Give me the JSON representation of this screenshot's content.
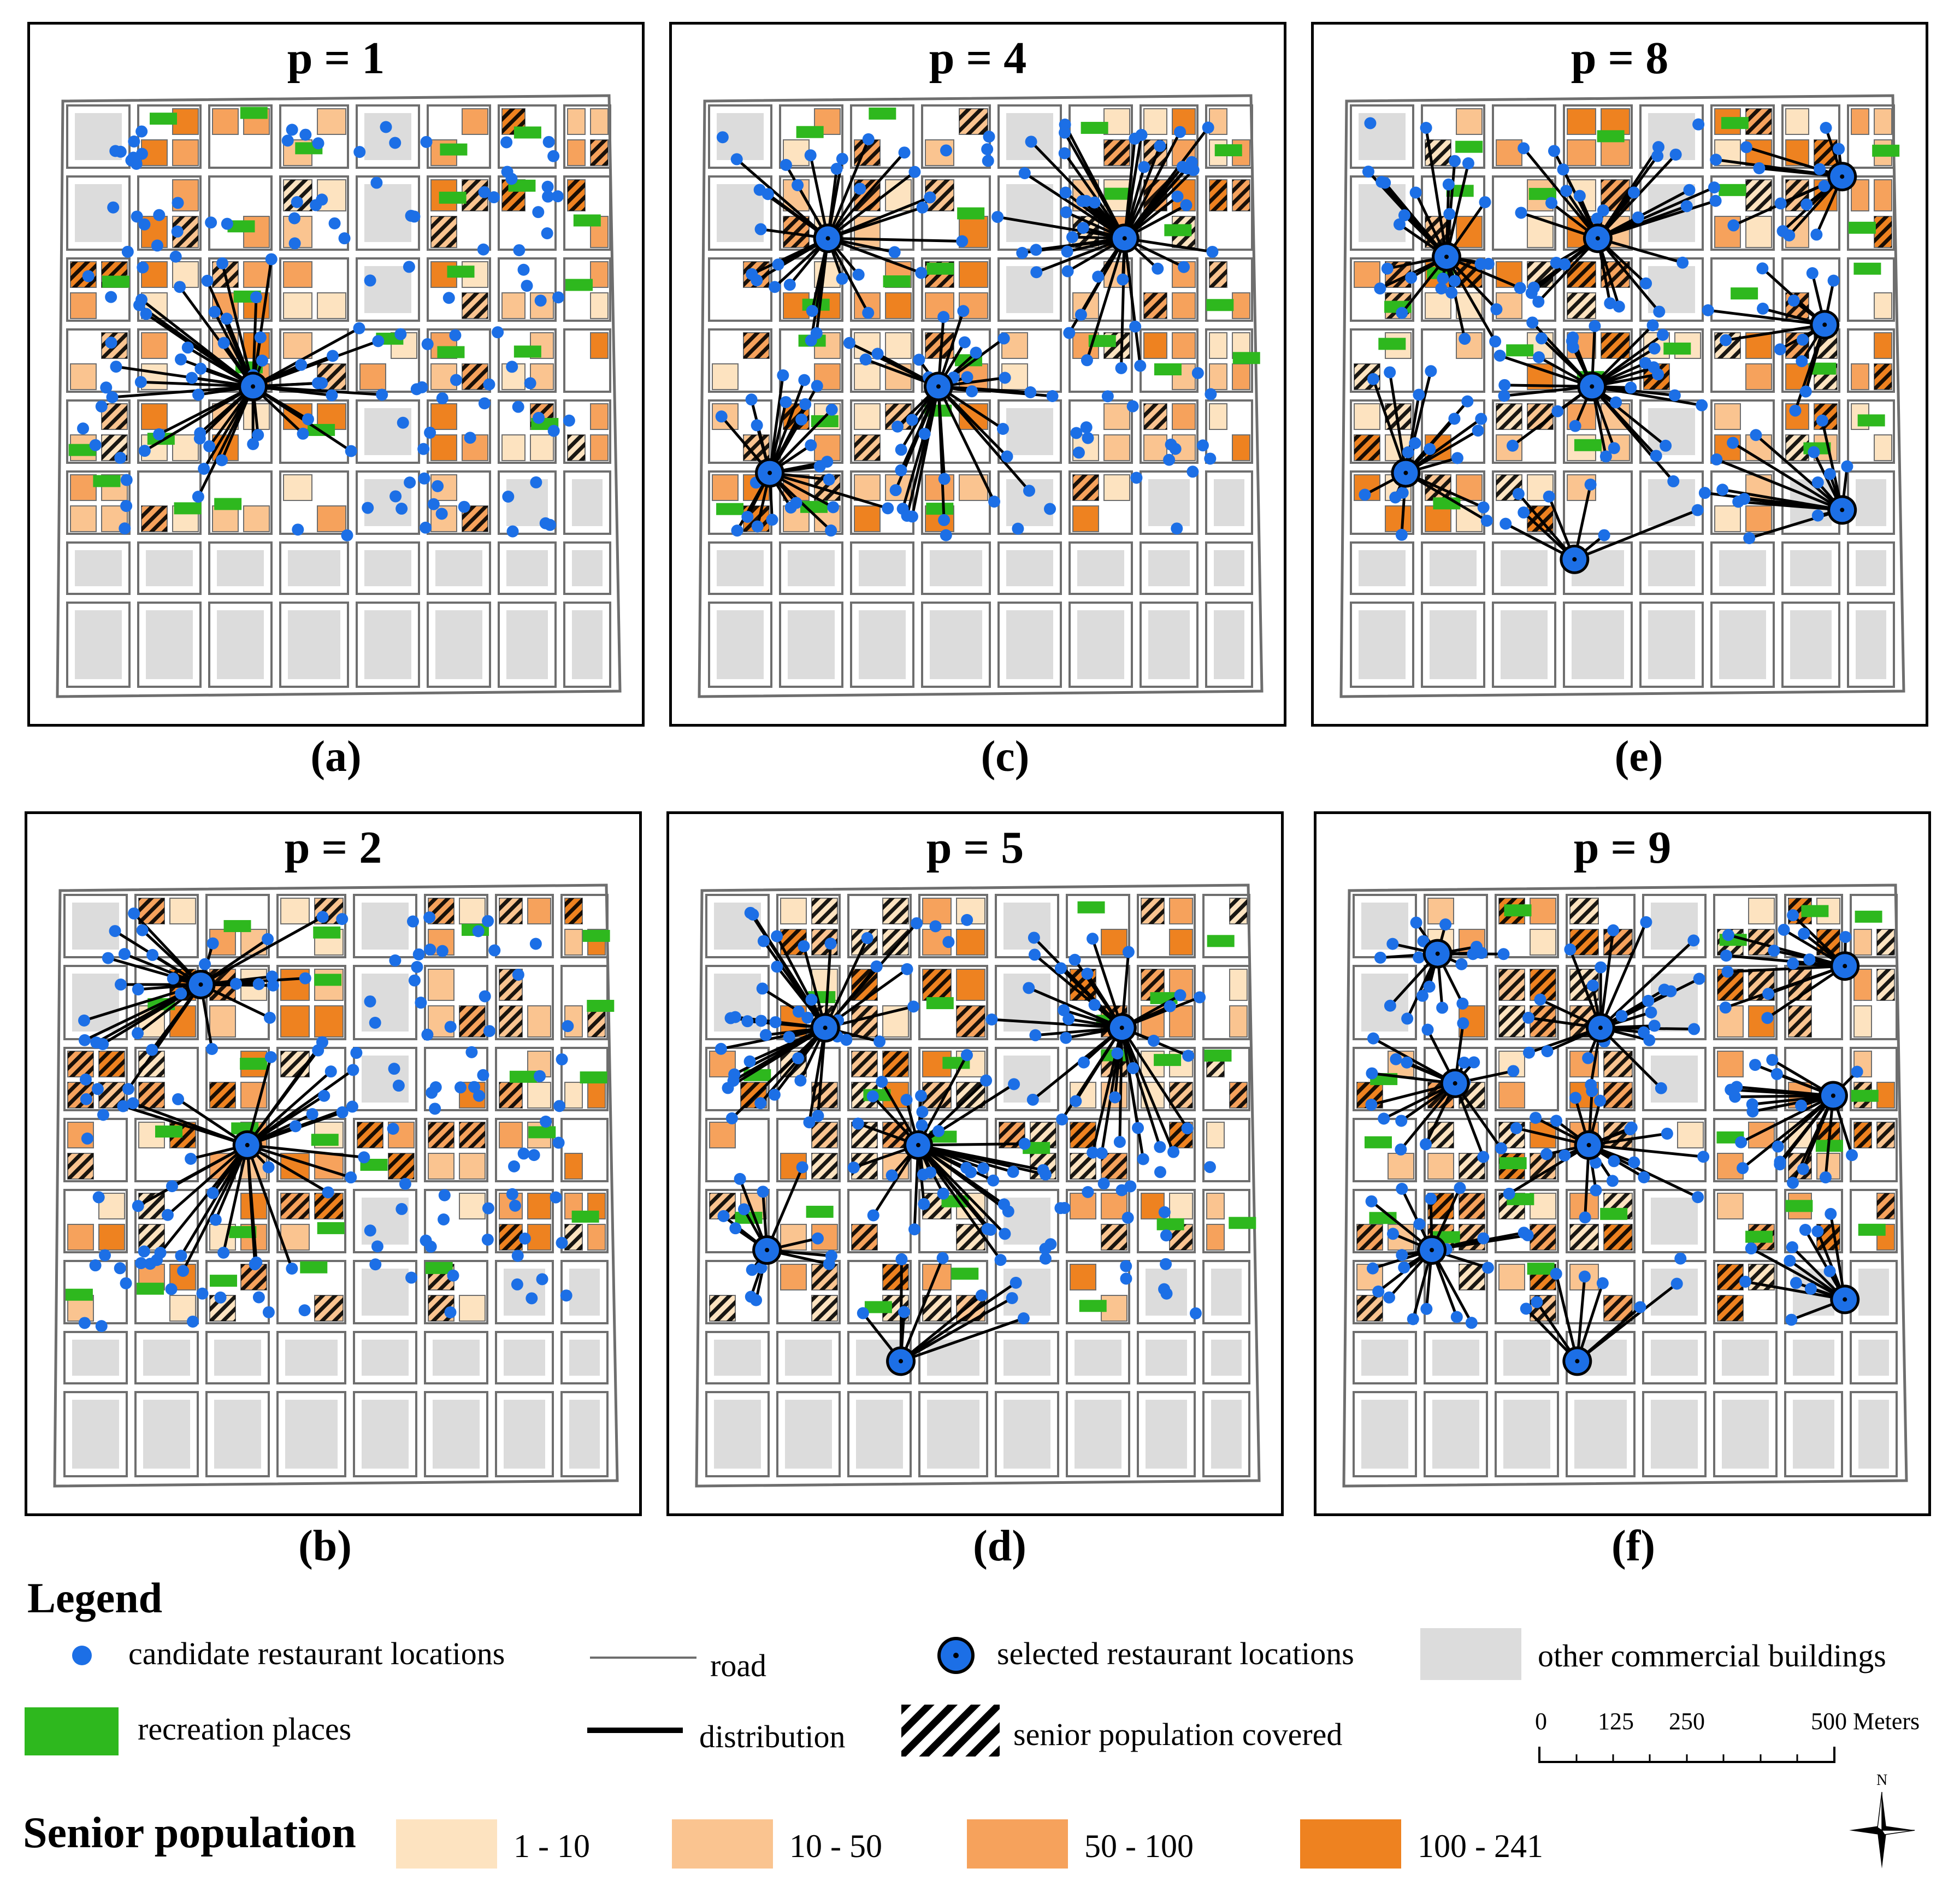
{
  "panels": [
    {
      "id": "a",
      "title": "p = 1",
      "caption": "(a)",
      "selected": [
        [
          0.355,
          0.48
        ]
      ]
    },
    {
      "id": "c",
      "title": "p = 4",
      "caption": "(c)",
      "selected": [
        [
          0.24,
          0.24
        ],
        [
          0.75,
          0.24
        ],
        [
          0.43,
          0.48
        ],
        [
          0.14,
          0.62
        ]
      ]
    },
    {
      "id": "e",
      "title": "p = 8",
      "caption": "(e)",
      "selected": [
        [
          0.2,
          0.27
        ],
        [
          0.46,
          0.24
        ],
        [
          0.88,
          0.14
        ],
        [
          0.85,
          0.38
        ],
        [
          0.45,
          0.48
        ],
        [
          0.13,
          0.62
        ],
        [
          0.42,
          0.76
        ],
        [
          0.88,
          0.68
        ]
      ]
    },
    {
      "id": "b",
      "title": "p = 2",
      "caption": "(b)",
      "selected": [
        [
          0.27,
          0.17
        ],
        [
          0.35,
          0.43
        ]
      ]
    },
    {
      "id": "d",
      "title": "p = 5",
      "caption": "(d)",
      "selected": [
        [
          0.24,
          0.24
        ],
        [
          0.75,
          0.24
        ],
        [
          0.4,
          0.43
        ],
        [
          0.14,
          0.6
        ],
        [
          0.37,
          0.78
        ]
      ]
    },
    {
      "id": "f",
      "title": "p = 9",
      "caption": "(f)",
      "selected": [
        [
          0.18,
          0.12
        ],
        [
          0.46,
          0.24
        ],
        [
          0.88,
          0.14
        ],
        [
          0.21,
          0.33
        ],
        [
          0.86,
          0.35
        ],
        [
          0.44,
          0.43
        ],
        [
          0.17,
          0.6
        ],
        [
          0.42,
          0.78
        ],
        [
          0.88,
          0.68
        ]
      ]
    }
  ],
  "legend": {
    "title": "Legend",
    "candidate": "candidate restaurant locations",
    "road": "road",
    "selected": "selected restaurant locations",
    "other": "other commercial buildings",
    "recreation": "recreation places",
    "distribution": "distribution",
    "covered": "senior population covered"
  },
  "scale": {
    "ticks": [
      "0",
      "125",
      "250",
      "500 Meters"
    ]
  },
  "north": "N",
  "senior": {
    "title": "Senior population",
    "classes": [
      {
        "label": "1 - 10",
        "color": "#fde3c0"
      },
      {
        "label": "10 - 50",
        "color": "#fac490"
      },
      {
        "label": "50 - 100",
        "color": "#f6a25c"
      },
      {
        "label": "100 - 241",
        "color": "#ee8220"
      }
    ]
  },
  "colors": {
    "building": "#dcdcdc",
    "road": "#6e6e6e",
    "recreation": "#2eb81e",
    "candidate": "#1c6fe6",
    "selected": "#1c6fe6"
  }
}
